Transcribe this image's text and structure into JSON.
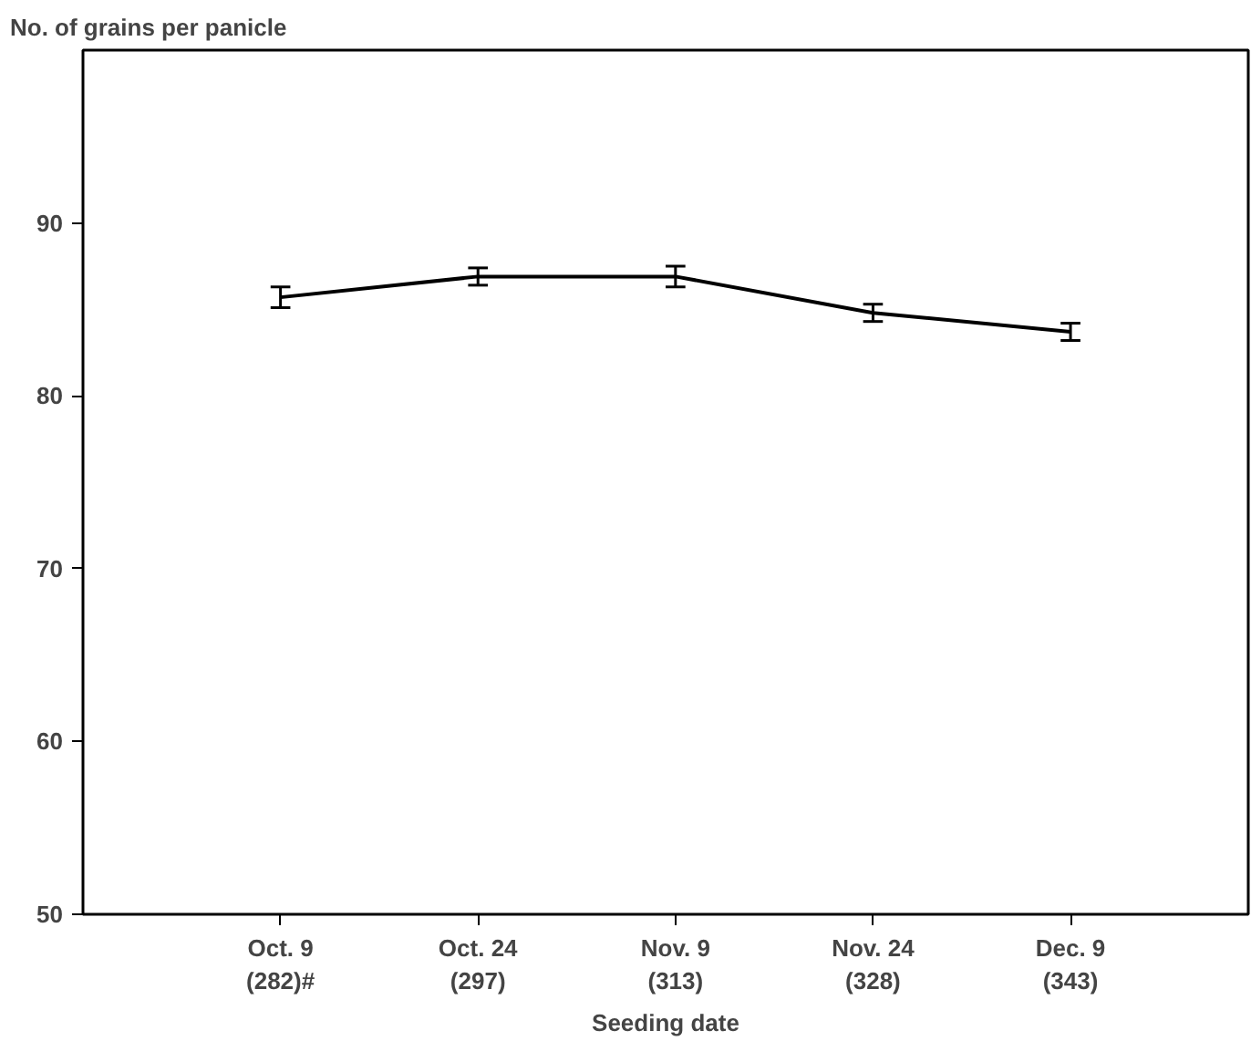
{
  "chart_data": {
    "type": "line",
    "ylabel": "No. of grains per panicle",
    "xlabel": "Seeding date",
    "categories": [
      "Oct. 9\n(282)#",
      "Oct. 24\n(297)",
      "Nov. 9\n(313)",
      "Nov. 24\n(328)",
      "Dec. 9\n(343)"
    ],
    "series": [
      {
        "color": "#000000",
        "values": [
          85.7,
          86.9,
          86.9,
          84.8,
          83.7
        ],
        "errors": [
          0.6,
          0.5,
          0.6,
          0.5,
          0.5
        ]
      }
    ],
    "ylim": [
      50,
      100
    ],
    "yticks": [
      50,
      60,
      70,
      80,
      90
    ],
    "grid": false,
    "line_style": "solid"
  }
}
